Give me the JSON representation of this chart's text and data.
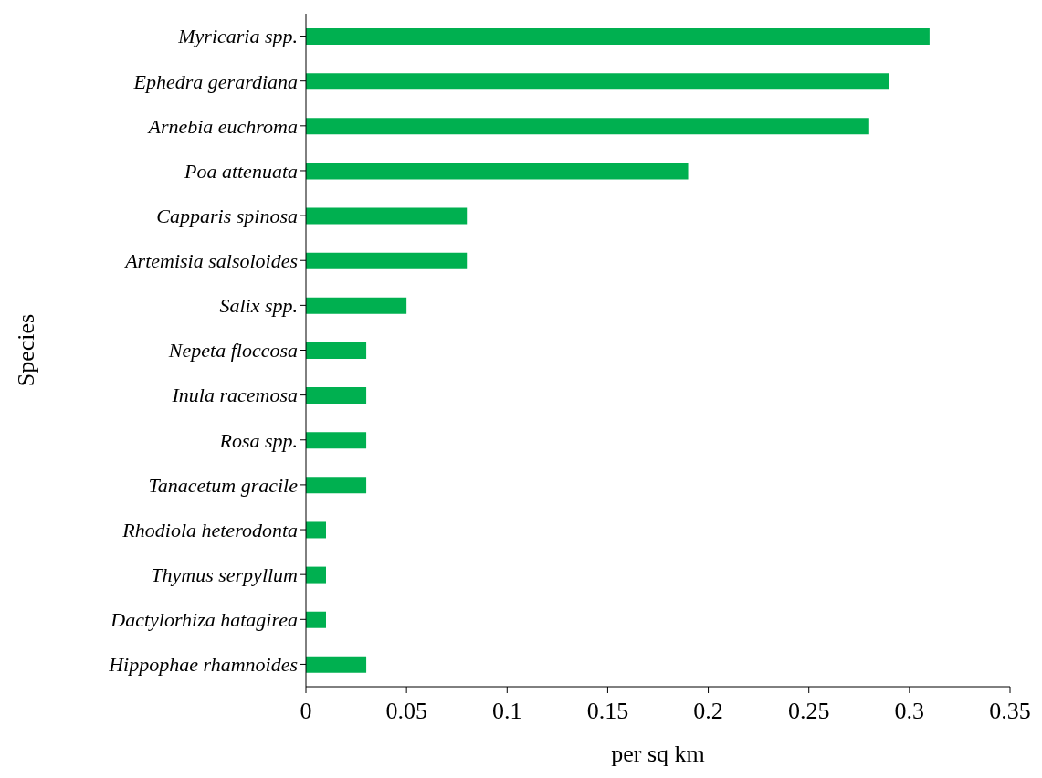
{
  "chart_data": {
    "type": "bar",
    "orientation": "horizontal",
    "xlabel": "per sq km",
    "ylabel": "Species",
    "categories": [
      "Myricaria spp.",
      "Ephedra gerardiana",
      "Arnebia euchroma",
      "Poa attenuata",
      "Capparis spinosa",
      "Artemisia salsoloides",
      "Salix spp.",
      "Nepeta floccosa",
      "Inula racemosa",
      "Rosa spp.",
      "Tanacetum gracile",
      "Rhodiola heterodonta",
      "Thymus serpyllum",
      "Dactylorhiza hatagirea",
      "Hippophae rhamnoides"
    ],
    "values": [
      0.31,
      0.29,
      0.28,
      0.19,
      0.08,
      0.08,
      0.05,
      0.03,
      0.03,
      0.03,
      0.03,
      0.01,
      0.01,
      0.01,
      0.03
    ],
    "color": "#00b050",
    "xlim": [
      0,
      0.35
    ],
    "xticks": [
      0,
      0.05,
      0.1,
      0.15,
      0.2,
      0.25,
      0.3,
      0.35
    ],
    "grid": false,
    "legend": false
  }
}
